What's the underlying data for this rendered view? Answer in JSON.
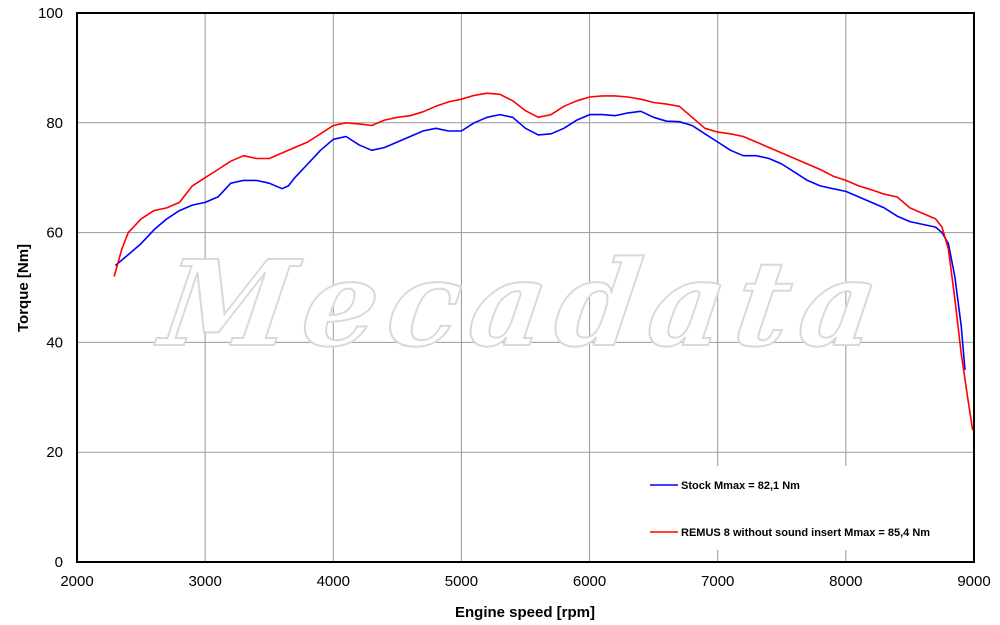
{
  "watermark": "Mecadata",
  "chart_data": {
    "type": "line",
    "title": "",
    "xlabel": "Engine speed [rpm]",
    "ylabel": "Torque [Nm]",
    "xlim": [
      2000,
      9000
    ],
    "ylim": [
      0,
      100
    ],
    "xticks": [
      2000,
      3000,
      4000,
      5000,
      6000,
      7000,
      8000,
      9000
    ],
    "yticks": [
      0,
      20,
      40,
      60,
      80,
      100
    ],
    "grid": true,
    "legend_position": "bottom-right",
    "series": [
      {
        "name": "Stock Mmax = 82,1 Nm",
        "color": "#0000ff",
        "x": [
          2300,
          2400,
          2500,
          2600,
          2700,
          2800,
          2900,
          3000,
          3100,
          3200,
          3300,
          3400,
          3500,
          3600,
          3650,
          3700,
          3800,
          3900,
          4000,
          4100,
          4200,
          4300,
          4400,
          4500,
          4600,
          4700,
          4800,
          4900,
          5000,
          5100,
          5200,
          5300,
          5400,
          5500,
          5600,
          5700,
          5800,
          5900,
          6000,
          6100,
          6200,
          6300,
          6400,
          6500,
          6600,
          6700,
          6800,
          6900,
          7000,
          7100,
          7200,
          7300,
          7400,
          7500,
          7600,
          7700,
          7800,
          7900,
          8000,
          8100,
          8200,
          8300,
          8400,
          8500,
          8600,
          8700,
          8750,
          8800,
          8850,
          8900,
          8930
        ],
        "y": [
          54,
          56,
          58,
          60.5,
          62.5,
          64,
          65,
          65.5,
          66.5,
          69,
          69.5,
          69.5,
          69,
          68,
          68.5,
          70,
          72.5,
          75,
          77,
          77.5,
          76,
          75,
          75.5,
          76.5,
          77.5,
          78.5,
          79,
          78.5,
          78.5,
          80,
          81,
          81.5,
          81,
          79,
          77.8,
          78,
          79,
          80.5,
          81.5,
          81.5,
          81.3,
          81.8,
          82.1,
          81,
          80.3,
          80.2,
          79.5,
          78,
          76.5,
          75,
          74,
          74,
          73.5,
          72.5,
          71,
          69.5,
          68.5,
          68,
          67.5,
          66.5,
          65.5,
          64.5,
          63,
          62,
          61.5,
          61,
          60,
          58,
          52,
          43,
          35
        ]
      },
      {
        "name": "REMUS 8 without sound insert Mmax = 85,4 Nm",
        "color": "#ff0000",
        "x": [
          2290,
          2350,
          2400,
          2500,
          2600,
          2700,
          2800,
          2900,
          3000,
          3100,
          3200,
          3300,
          3400,
          3500,
          3600,
          3700,
          3800,
          3900,
          4000,
          4100,
          4200,
          4300,
          4400,
          4500,
          4600,
          4700,
          4800,
          4900,
          5000,
          5100,
          5200,
          5300,
          5400,
          5500,
          5600,
          5700,
          5800,
          5900,
          6000,
          6100,
          6200,
          6300,
          6400,
          6500,
          6600,
          6700,
          6800,
          6900,
          7000,
          7100,
          7200,
          7300,
          7400,
          7500,
          7600,
          7700,
          7800,
          7900,
          8000,
          8100,
          8200,
          8300,
          8400,
          8500,
          8600,
          8700,
          8750,
          8800,
          8850,
          8900,
          8950,
          8990
        ],
        "y": [
          52,
          57,
          60,
          62.5,
          64,
          64.5,
          65.5,
          68.5,
          70,
          71.5,
          73,
          74,
          73.5,
          73.5,
          74.5,
          75.5,
          76.5,
          78,
          79.5,
          80,
          79.8,
          79.5,
          80.5,
          81,
          81.3,
          82,
          83,
          83.8,
          84.3,
          85,
          85.4,
          85.2,
          84,
          82.2,
          81,
          81.5,
          83,
          84,
          84.7,
          84.9,
          84.9,
          84.7,
          84.3,
          83.7,
          83.4,
          83,
          81,
          79,
          78.3,
          78,
          77.5,
          76.5,
          75.5,
          74.5,
          73.5,
          72.5,
          71.5,
          70.3,
          69.5,
          68.5,
          67.8,
          67,
          66.5,
          64.5,
          63.5,
          62.5,
          61,
          57,
          48,
          38,
          30,
          24
        ]
      }
    ]
  }
}
